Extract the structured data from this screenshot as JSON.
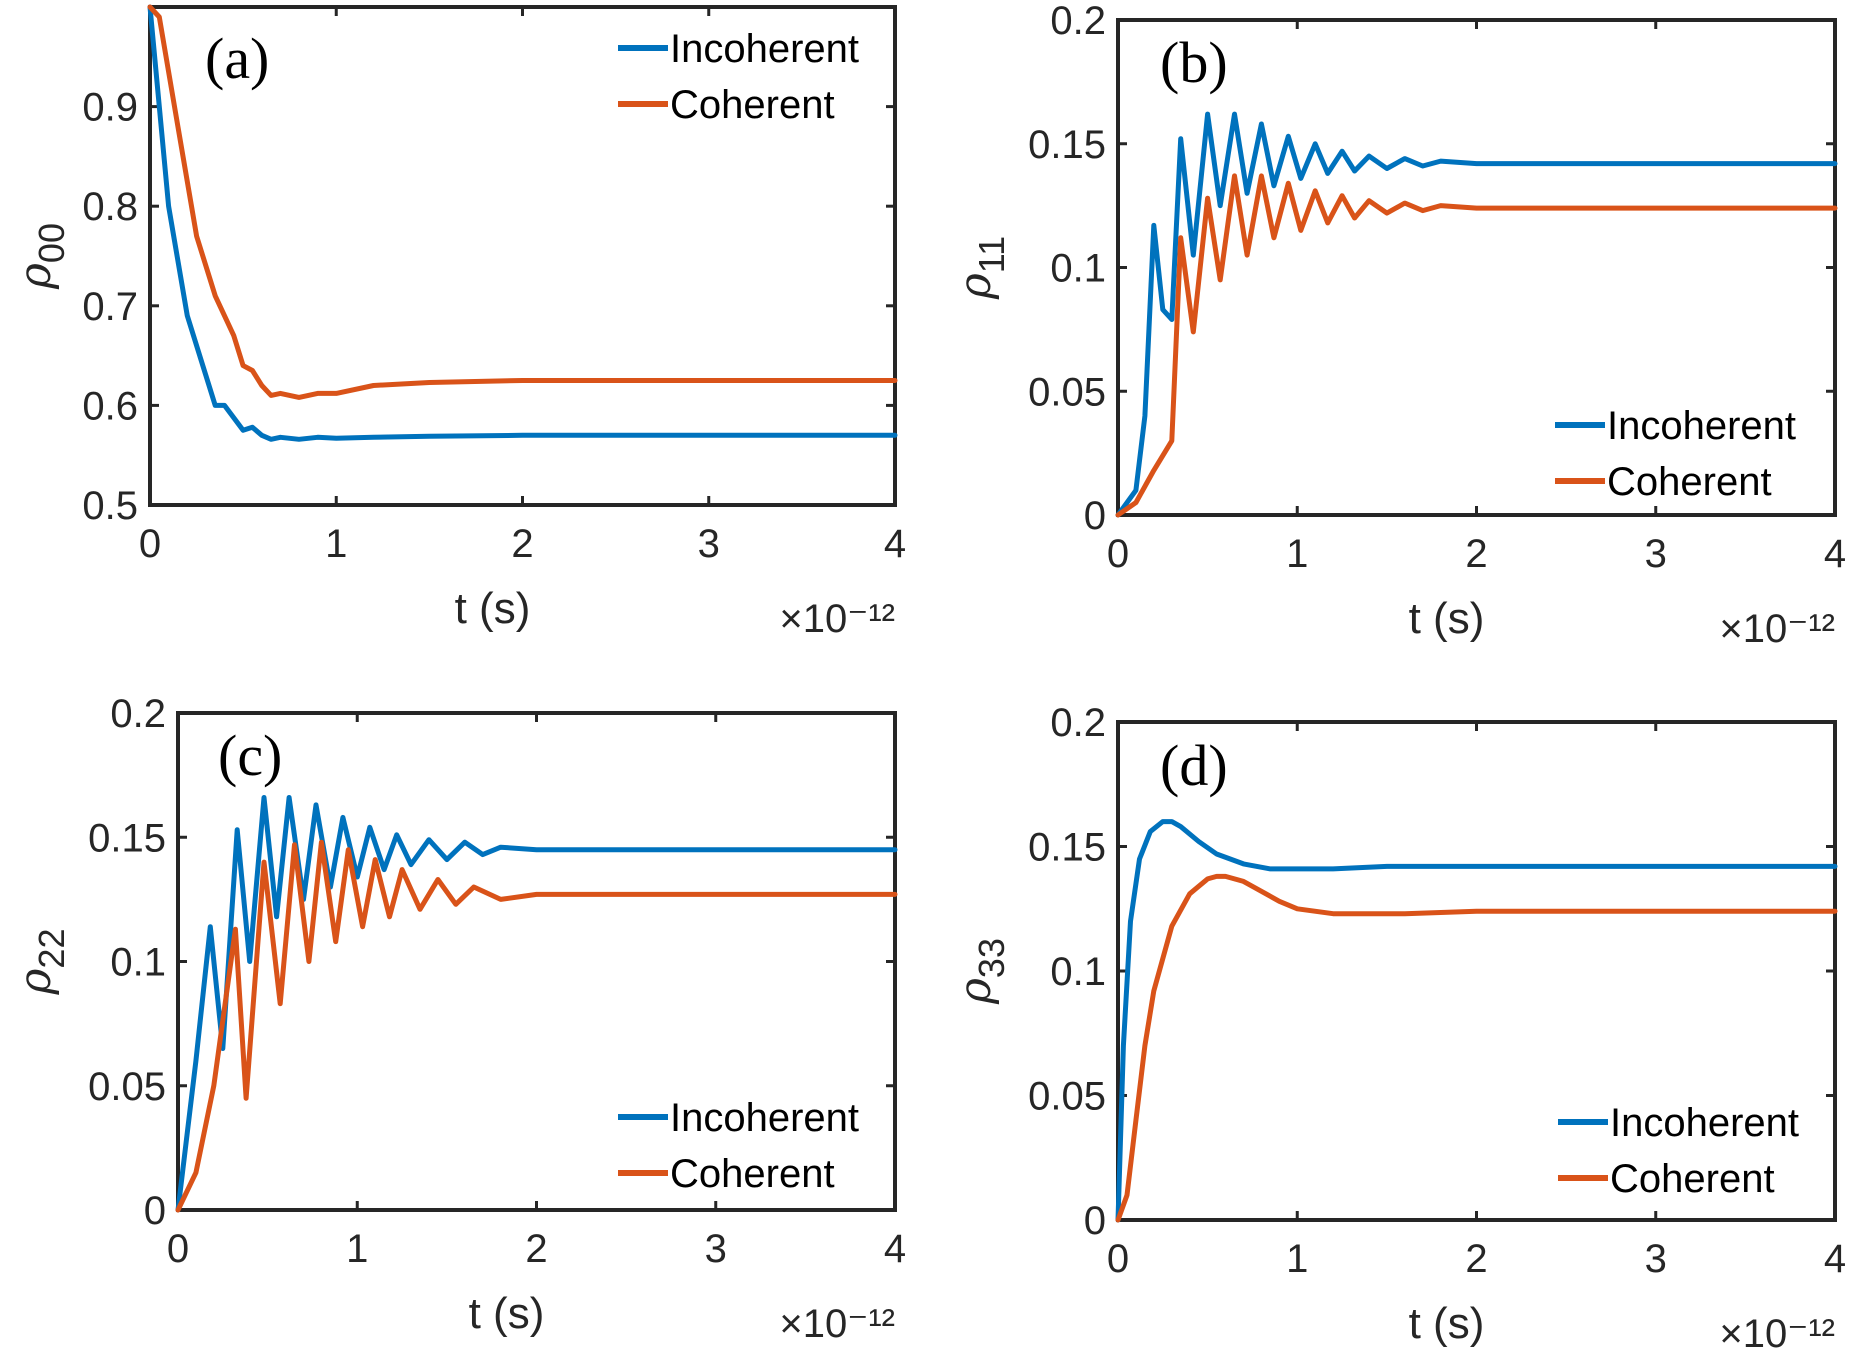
{
  "colors": {
    "Incoherent": "#0072BD",
    "Coherent": "#D95319"
  },
  "chart_data": [
    {
      "type": "line",
      "panel_label": "(a)",
      "ylabel": "ρ",
      "ylabel_sub": "00",
      "xlabel": "t (s)",
      "x_exponent": "×10⁻¹²",
      "xlim": [
        0,
        4
      ],
      "ylim": [
        0.5,
        1.0
      ],
      "xticks": [
        "0",
        "1",
        "2",
        "3",
        "4"
      ],
      "yticks": [
        "0.5",
        "0.6",
        "0.7",
        "0.8",
        "0.9"
      ],
      "legend_position": "top-right",
      "series": [
        {
          "name": "Incoherent",
          "x": [
            0,
            0.1,
            0.2,
            0.3,
            0.35,
            0.4,
            0.5,
            0.55,
            0.6,
            0.65,
            0.7,
            0.8,
            0.9,
            1.0,
            1.2,
            1.5,
            2,
            3,
            4
          ],
          "y": [
            1.0,
            0.8,
            0.69,
            0.63,
            0.6,
            0.6,
            0.575,
            0.578,
            0.57,
            0.566,
            0.568,
            0.566,
            0.568,
            0.567,
            0.568,
            0.569,
            0.57,
            0.57,
            0.57
          ]
        },
        {
          "name": "Coherent",
          "x": [
            0,
            0.05,
            0.15,
            0.25,
            0.35,
            0.45,
            0.5,
            0.55,
            0.6,
            0.65,
            0.7,
            0.8,
            0.9,
            1.0,
            1.2,
            1.5,
            2,
            3,
            4
          ],
          "y": [
            1.0,
            0.99,
            0.88,
            0.77,
            0.71,
            0.67,
            0.64,
            0.635,
            0.62,
            0.61,
            0.612,
            0.608,
            0.612,
            0.612,
            0.62,
            0.623,
            0.625,
            0.625,
            0.625
          ]
        }
      ]
    },
    {
      "type": "line",
      "panel_label": "(b)",
      "ylabel": "ρ",
      "ylabel_sub": "11",
      "xlabel": "t (s)",
      "x_exponent": "×10⁻¹²",
      "xlim": [
        0,
        4
      ],
      "ylim": [
        0,
        0.2
      ],
      "xticks": [
        "0",
        "1",
        "2",
        "3",
        "4"
      ],
      "yticks": [
        "0",
        "0.05",
        "0.1",
        "0.15",
        "0.2"
      ],
      "legend_position": "bottom-right",
      "series": [
        {
          "name": "Incoherent",
          "x": [
            0,
            0.1,
            0.15,
            0.2,
            0.25,
            0.3,
            0.35,
            0.42,
            0.5,
            0.57,
            0.65,
            0.72,
            0.8,
            0.87,
            0.95,
            1.02,
            1.1,
            1.17,
            1.25,
            1.32,
            1.4,
            1.5,
            1.6,
            1.7,
            1.8,
            2,
            2.5,
            3,
            4
          ],
          "y": [
            0,
            0.01,
            0.04,
            0.117,
            0.083,
            0.079,
            0.152,
            0.105,
            0.162,
            0.125,
            0.162,
            0.13,
            0.158,
            0.133,
            0.153,
            0.136,
            0.15,
            0.138,
            0.147,
            0.139,
            0.145,
            0.14,
            0.144,
            0.141,
            0.143,
            0.142,
            0.142,
            0.142,
            0.142
          ]
        },
        {
          "name": "Coherent",
          "x": [
            0,
            0.1,
            0.2,
            0.3,
            0.35,
            0.42,
            0.5,
            0.57,
            0.65,
            0.72,
            0.8,
            0.87,
            0.95,
            1.02,
            1.1,
            1.17,
            1.25,
            1.32,
            1.4,
            1.5,
            1.6,
            1.7,
            1.8,
            2,
            2.5,
            3,
            4
          ],
          "y": [
            0,
            0.005,
            0.018,
            0.03,
            0.112,
            0.074,
            0.128,
            0.095,
            0.137,
            0.105,
            0.137,
            0.112,
            0.134,
            0.115,
            0.131,
            0.118,
            0.129,
            0.12,
            0.127,
            0.122,
            0.126,
            0.123,
            0.125,
            0.124,
            0.124,
            0.124,
            0.124
          ]
        }
      ]
    },
    {
      "type": "line",
      "panel_label": "(c)",
      "ylabel": "ρ",
      "ylabel_sub": "22",
      "xlabel": "t (s)",
      "x_exponent": "×10⁻¹²",
      "xlim": [
        0,
        4
      ],
      "ylim": [
        0,
        0.2
      ],
      "xticks": [
        "0",
        "1",
        "2",
        "3",
        "4"
      ],
      "yticks": [
        "0",
        "0.05",
        "0.1",
        "0.15",
        "0.2"
      ],
      "legend_position": "bottom-right",
      "series": [
        {
          "name": "Incoherent",
          "x": [
            0,
            0.1,
            0.18,
            0.25,
            0.33,
            0.4,
            0.48,
            0.55,
            0.62,
            0.7,
            0.77,
            0.85,
            0.92,
            1.0,
            1.07,
            1.15,
            1.22,
            1.3,
            1.4,
            1.5,
            1.6,
            1.7,
            1.8,
            2,
            2.5,
            3,
            4
          ],
          "y": [
            0,
            0.06,
            0.114,
            0.065,
            0.153,
            0.1,
            0.166,
            0.118,
            0.166,
            0.125,
            0.163,
            0.13,
            0.158,
            0.134,
            0.154,
            0.137,
            0.151,
            0.139,
            0.149,
            0.141,
            0.148,
            0.143,
            0.146,
            0.145,
            0.145,
            0.145,
            0.145
          ]
        },
        {
          "name": "Coherent",
          "x": [
            0,
            0.1,
            0.2,
            0.32,
            0.38,
            0.48,
            0.57,
            0.65,
            0.73,
            0.8,
            0.88,
            0.95,
            1.03,
            1.1,
            1.18,
            1.25,
            1.35,
            1.45,
            1.55,
            1.65,
            1.8,
            2,
            2.5,
            3,
            4
          ],
          "y": [
            0,
            0.015,
            0.05,
            0.113,
            0.045,
            0.14,
            0.083,
            0.147,
            0.1,
            0.148,
            0.108,
            0.145,
            0.114,
            0.141,
            0.118,
            0.137,
            0.121,
            0.133,
            0.123,
            0.13,
            0.125,
            0.127,
            0.127,
            0.127,
            0.127
          ]
        }
      ]
    },
    {
      "type": "line",
      "panel_label": "(d)",
      "ylabel": "ρ",
      "ylabel_sub": "33",
      "xlabel": "t (s)",
      "x_exponent": "×10⁻¹²",
      "xlim": [
        0,
        4
      ],
      "ylim": [
        0,
        0.2
      ],
      "xticks": [
        "0",
        "1",
        "2",
        "3",
        "4"
      ],
      "yticks": [
        "0",
        "0.05",
        "0.1",
        "0.15",
        "0.2"
      ],
      "legend_position": "bottom-right",
      "series": [
        {
          "name": "Incoherent",
          "x": [
            0,
            0.03,
            0.07,
            0.12,
            0.18,
            0.25,
            0.3,
            0.35,
            0.45,
            0.55,
            0.7,
            0.85,
            1.0,
            1.2,
            1.5,
            2,
            3,
            4
          ],
          "y": [
            0,
            0.07,
            0.12,
            0.145,
            0.156,
            0.16,
            0.16,
            0.158,
            0.152,
            0.147,
            0.143,
            0.141,
            0.141,
            0.141,
            0.142,
            0.142,
            0.142,
            0.142
          ]
        },
        {
          "name": "Coherent",
          "x": [
            0,
            0.05,
            0.1,
            0.15,
            0.2,
            0.3,
            0.4,
            0.5,
            0.55,
            0.6,
            0.7,
            0.8,
            0.9,
            1.0,
            1.2,
            1.4,
            1.6,
            2,
            3,
            4
          ],
          "y": [
            0,
            0.01,
            0.04,
            0.07,
            0.092,
            0.118,
            0.131,
            0.137,
            0.138,
            0.138,
            0.136,
            0.132,
            0.128,
            0.125,
            0.123,
            0.123,
            0.123,
            0.124,
            0.124,
            0.124
          ]
        }
      ]
    }
  ]
}
